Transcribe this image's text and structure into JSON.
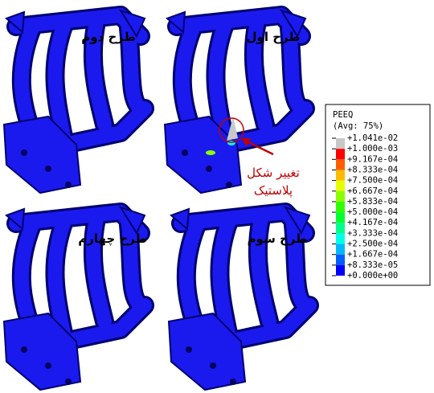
{
  "panels": [
    {
      "label": "طرح دوم"
    },
    {
      "label": "طرح اول"
    },
    {
      "label": "طرح چهارم"
    },
    {
      "label": "طرح سوم"
    }
  ],
  "annotation": {
    "lines": [
      "تغییر شکل",
      "پلاستیک"
    ],
    "color": "#c00000"
  },
  "legend": {
    "title": "PEEQ",
    "subtitle": "(Avg: 75%)",
    "labels": [
      "+1.041e-02",
      "+1.000e-03",
      "+9.167e-04",
      "+8.333e-04",
      "+7.500e-04",
      "+6.667e-04",
      "+5.833e-04",
      "+5.000e-04",
      "+4.167e-04",
      "+3.333e-04",
      "+2.500e-04",
      "+1.667e-04",
      "+8.333e-05",
      "+0.000e+00"
    ],
    "colors": [
      "#c8c8c8",
      "#ff0000",
      "#ff5d00",
      "#ffb900",
      "#e3ff00",
      "#8aff00",
      "#2eff00",
      "#00ff2e",
      "#00ff8b",
      "#00ffe8",
      "#00b9ff",
      "#005dff",
      "#0000ff"
    ]
  }
}
